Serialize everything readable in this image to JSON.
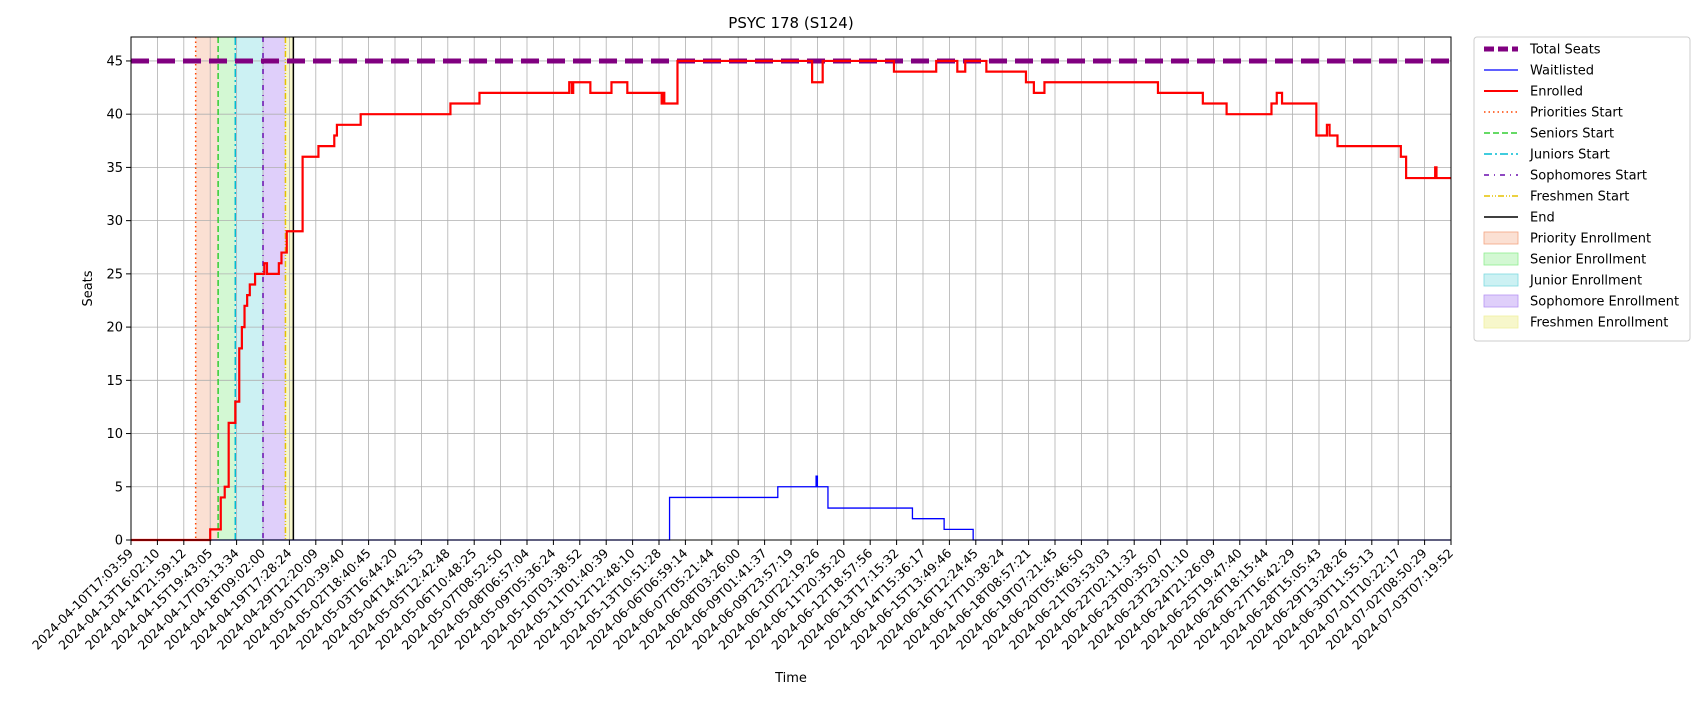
{
  "chart_data": {
    "type": "line",
    "title": "PSYC 178 (S124)",
    "xlabel": "Time",
    "ylabel": "Seats",
    "ylim": [
      0,
      47.25
    ],
    "yticks": [
      0,
      5,
      10,
      15,
      20,
      25,
      30,
      35,
      40,
      45
    ],
    "grid": true,
    "legend_position": "outside-right",
    "x_tick_labels": [
      "2024-04-10T17:03:59",
      "2024-04-13T16:02:10",
      "2024-04-14T21:59:12",
      "2024-04-15T19:43:05",
      "2024-04-17T03:13:34",
      "2024-04-18T09:02:00",
      "2024-04-19T17:28:24",
      "2024-04-29T12:20:09",
      "2024-05-01T20:39:40",
      "2024-05-02T18:40:45",
      "2024-05-03T16:44:20",
      "2024-05-04T14:42:53",
      "2024-05-05T12:42:48",
      "2024-05-06T10:48:25",
      "2024-05-07T08:52:50",
      "2024-05-08T06:57:04",
      "2024-05-09T05:36:24",
      "2024-05-10T03:38:52",
      "2024-05-11T01:40:39",
      "2024-05-12T12:48:10",
      "2024-05-13T10:51:28",
      "2024-06-06T06:59:14",
      "2024-06-07T05:21:44",
      "2024-06-08T03:26:00",
      "2024-06-09T01:41:37",
      "2024-06-09T23:57:19",
      "2024-06-10T22:19:26",
      "2024-06-11T20:35:20",
      "2024-06-12T18:57:56",
      "2024-06-13T17:15:32",
      "2024-06-14T15:36:17",
      "2024-06-15T13:49:46",
      "2024-06-16T12:24:45",
      "2024-06-17T10:38:24",
      "2024-06-18T08:57:21",
      "2024-06-19T07:21:45",
      "2024-06-20T05:46:50",
      "2024-06-21T03:53:03",
      "2024-06-22T02:11:32",
      "2024-06-23T00:35:07",
      "2024-06-23T23:01:10",
      "2024-06-24T21:26:09",
      "2024-06-25T19:47:40",
      "2024-06-26T18:15:44",
      "2024-06-27T16:42:29",
      "2024-06-28T15:05:43",
      "2024-06-29T13:28:26",
      "2024-06-30T11:55:13",
      "2024-07-01T10:22:17",
      "2024-07-02T08:50:29",
      "2024-07-03T07:19:52"
    ],
    "series": [
      {
        "name": "Total Seats",
        "color": "#800080",
        "step": false,
        "points": [
          [
            0,
            45
          ],
          [
            50,
            45
          ]
        ]
      },
      {
        "name": "Waitlisted",
        "color": "#0000ff",
        "step": true,
        "points": [
          [
            0,
            0
          ],
          [
            20.4,
            0
          ],
          [
            20.4,
            4
          ],
          [
            24.5,
            4
          ],
          [
            24.5,
            5
          ],
          [
            25.95,
            5
          ],
          [
            25.95,
            6
          ],
          [
            26.0,
            6
          ],
          [
            26.0,
            5
          ],
          [
            25.95,
            5
          ],
          [
            25.95,
            5
          ],
          [
            26.4,
            5
          ],
          [
            26.4,
            3
          ],
          [
            29.6,
            3
          ],
          [
            29.6,
            2
          ],
          [
            30.8,
            2
          ],
          [
            30.8,
            1
          ],
          [
            31.9,
            1
          ],
          [
            31.9,
            0
          ],
          [
            50,
            0
          ]
        ]
      },
      {
        "name": "Enrolled",
        "color": "#ff0000",
        "step": true,
        "points": [
          [
            0,
            0
          ],
          [
            3.0,
            0
          ],
          [
            3.0,
            1
          ],
          [
            3.4,
            1
          ],
          [
            3.4,
            4
          ],
          [
            3.55,
            4
          ],
          [
            3.55,
            5
          ],
          [
            3.7,
            5
          ],
          [
            3.7,
            11
          ],
          [
            3.95,
            11
          ],
          [
            3.95,
            13
          ],
          [
            4.1,
            13
          ],
          [
            4.1,
            18
          ],
          [
            4.2,
            18
          ],
          [
            4.2,
            20
          ],
          [
            4.3,
            20
          ],
          [
            4.3,
            22
          ],
          [
            4.4,
            22
          ],
          [
            4.4,
            23
          ],
          [
            4.5,
            23
          ],
          [
            4.5,
            24
          ],
          [
            4.7,
            24
          ],
          [
            4.7,
            25
          ],
          [
            5.05,
            25
          ],
          [
            5.05,
            26
          ],
          [
            5.15,
            26
          ],
          [
            5.15,
            25
          ],
          [
            5.6,
            25
          ],
          [
            5.6,
            26
          ],
          [
            5.7,
            26
          ],
          [
            5.7,
            27
          ],
          [
            5.9,
            27
          ],
          [
            5.9,
            29
          ],
          [
            6.5,
            29
          ],
          [
            6.5,
            36
          ],
          [
            7.1,
            36
          ],
          [
            7.1,
            37
          ],
          [
            7.7,
            37
          ],
          [
            7.7,
            38
          ],
          [
            7.8,
            38
          ],
          [
            7.8,
            39
          ],
          [
            8.7,
            39
          ],
          [
            8.7,
            40
          ],
          [
            12.1,
            40
          ],
          [
            12.1,
            41
          ],
          [
            13.2,
            41
          ],
          [
            13.2,
            42
          ],
          [
            16.6,
            42
          ],
          [
            16.6,
            43
          ],
          [
            16.7,
            43
          ],
          [
            16.7,
            42
          ],
          [
            16.75,
            42
          ],
          [
            16.75,
            43
          ],
          [
            17.4,
            43
          ],
          [
            17.4,
            42
          ],
          [
            18.2,
            42
          ],
          [
            18.2,
            43
          ],
          [
            18.8,
            43
          ],
          [
            18.8,
            42
          ],
          [
            20.1,
            42
          ],
          [
            20.1,
            41
          ],
          [
            20.15,
            41
          ],
          [
            20.15,
            42
          ],
          [
            20.2,
            42
          ],
          [
            20.2,
            41
          ],
          [
            20.7,
            41
          ],
          [
            20.7,
            45
          ],
          [
            25.8,
            45
          ],
          [
            25.8,
            43
          ],
          [
            26.2,
            43
          ],
          [
            26.2,
            45
          ],
          [
            28.9,
            45
          ],
          [
            28.9,
            44
          ],
          [
            30.5,
            44
          ],
          [
            30.5,
            45
          ],
          [
            31.3,
            45
          ],
          [
            31.3,
            44
          ],
          [
            31.6,
            44
          ],
          [
            31.6,
            45
          ],
          [
            32.4,
            45
          ],
          [
            32.4,
            44
          ],
          [
            33.9,
            44
          ],
          [
            33.9,
            43
          ],
          [
            34.2,
            43
          ],
          [
            34.2,
            42
          ],
          [
            34.6,
            42
          ],
          [
            34.6,
            43
          ],
          [
            38.9,
            43
          ],
          [
            38.9,
            42
          ],
          [
            40.6,
            42
          ],
          [
            40.6,
            41
          ],
          [
            41.5,
            41
          ],
          [
            41.5,
            40
          ],
          [
            43.2,
            40
          ],
          [
            43.2,
            41
          ],
          [
            43.4,
            41
          ],
          [
            43.4,
            42
          ],
          [
            43.6,
            42
          ],
          [
            43.6,
            41
          ],
          [
            44.9,
            41
          ],
          [
            44.9,
            38
          ],
          [
            45.3,
            38
          ],
          [
            45.3,
            39
          ],
          [
            45.4,
            39
          ],
          [
            45.4,
            38
          ],
          [
            45.7,
            38
          ],
          [
            45.7,
            37
          ],
          [
            48.1,
            37
          ],
          [
            48.1,
            36
          ],
          [
            48.3,
            36
          ],
          [
            48.3,
            34
          ],
          [
            49.4,
            34
          ],
          [
            49.4,
            35
          ],
          [
            49.45,
            35
          ],
          [
            49.45,
            34
          ],
          [
            50,
            34
          ]
        ]
      }
    ],
    "phases": [
      {
        "name": "Priority Enrollment",
        "start": 2.45,
        "end": 3.3,
        "color": "#f4a582",
        "opacity": 0.35
      },
      {
        "name": "Senior Enrollment",
        "start": 3.3,
        "end": 3.95,
        "color": "#90ee90",
        "opacity": 0.4
      },
      {
        "name": "Junior Enrollment",
        "start": 3.95,
        "end": 5.0,
        "color": "#7fdbe0",
        "opacity": 0.4
      },
      {
        "name": "Sophomore Enrollment",
        "start": 5.0,
        "end": 5.85,
        "color": "#b794f4",
        "opacity": 0.45
      },
      {
        "name": "Freshmen Enrollment",
        "start": 5.85,
        "end": 6.15,
        "color": "#f0f0a0",
        "opacity": 0.55
      }
    ],
    "markers": [
      {
        "name": "Priorities Start",
        "x": 2.45,
        "color": "#ff4500",
        "dash": "1.5,3",
        "width": 1.5
      },
      {
        "name": "Seniors Start",
        "x": 3.3,
        "color": "#32cd32",
        "dash": "6,3",
        "width": 1.5
      },
      {
        "name": "Juniors Start",
        "x": 3.95,
        "color": "#00bcd4",
        "dash": "8,3,2,3",
        "width": 1.5
      },
      {
        "name": "Sophomores Start",
        "x": 5.0,
        "color": "#6a0dad",
        "dash": "5,5,1,5",
        "width": 1.5
      },
      {
        "name": "Freshmen Start",
        "x": 5.85,
        "color": "#e6c200",
        "dash": "6,2,1,2,1,2",
        "width": 1.5
      },
      {
        "name": "End",
        "x": 6.15,
        "color": "#000000",
        "dash": "",
        "width": 1.5
      }
    ],
    "legend": [
      {
        "label": "Total Seats",
        "kind": "line",
        "color": "#800080",
        "width": 5,
        "dash": "10,4"
      },
      {
        "label": "Waitlisted",
        "kind": "line",
        "color": "#0000ff",
        "width": 1.2,
        "dash": ""
      },
      {
        "label": "Enrolled",
        "kind": "line",
        "color": "#ff0000",
        "width": 2,
        "dash": ""
      },
      {
        "label": "Priorities Start",
        "kind": "line",
        "color": "#ff4500",
        "width": 1.5,
        "dash": "1.5,3"
      },
      {
        "label": "Seniors Start",
        "kind": "line",
        "color": "#32cd32",
        "width": 1.5,
        "dash": "6,3"
      },
      {
        "label": "Juniors Start",
        "kind": "line",
        "color": "#00bcd4",
        "width": 1.5,
        "dash": "8,3,2,3"
      },
      {
        "label": "Sophomores Start",
        "kind": "line",
        "color": "#6a0dad",
        "width": 1.5,
        "dash": "5,5,1,5"
      },
      {
        "label": "Freshmen Start",
        "kind": "line",
        "color": "#e6c200",
        "width": 1.5,
        "dash": "6,2,1,2,1,2"
      },
      {
        "label": "End",
        "kind": "line",
        "color": "#000000",
        "width": 1.5,
        "dash": ""
      },
      {
        "label": "Priority Enrollment",
        "kind": "patch",
        "color": "#f4a582",
        "opacity": 0.35
      },
      {
        "label": "Senior Enrollment",
        "kind": "patch",
        "color": "#90ee90",
        "opacity": 0.4
      },
      {
        "label": "Junior Enrollment",
        "kind": "patch",
        "color": "#7fdbe0",
        "opacity": 0.4
      },
      {
        "label": "Sophomore Enrollment",
        "kind": "patch",
        "color": "#b794f4",
        "opacity": 0.45
      },
      {
        "label": "Freshmen Enrollment",
        "kind": "patch",
        "color": "#f0f0a0",
        "opacity": 0.55
      }
    ]
  }
}
